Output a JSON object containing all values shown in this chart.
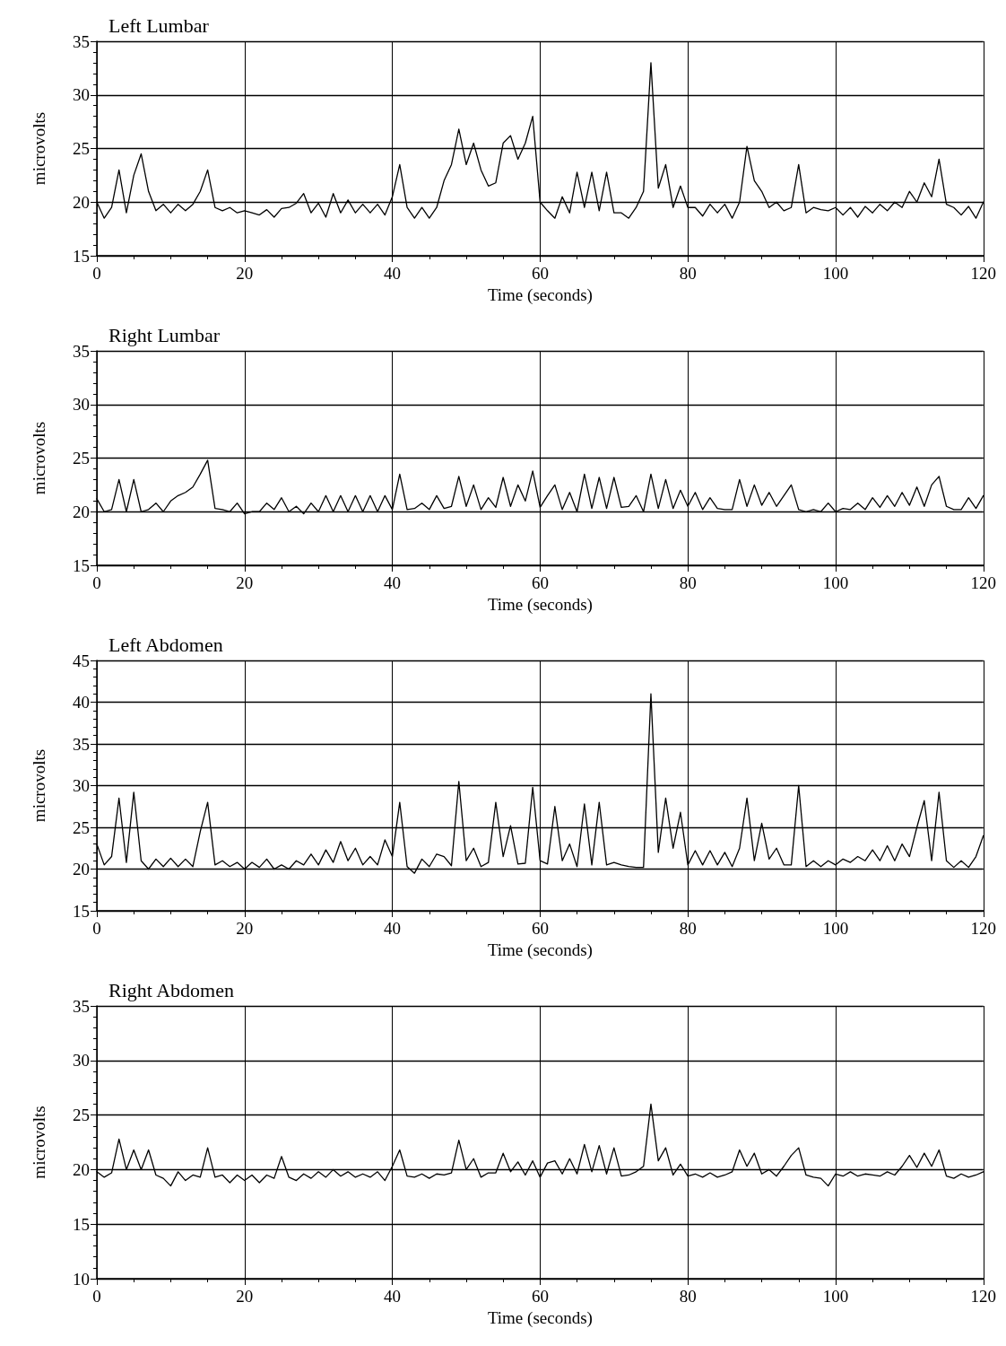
{
  "chart_data": [
    {
      "type": "line",
      "title": "Left Lumbar",
      "xlabel": "Time (seconds)",
      "ylabel": "microvolts",
      "xlim": [
        0,
        120
      ],
      "xticks": [
        0,
        20,
        40,
        60,
        80,
        100,
        120
      ],
      "ylim": [
        15,
        35
      ],
      "yticks": [
        15,
        20,
        25,
        30,
        35
      ],
      "grid": true,
      "marker": "none",
      "line_style": "solid",
      "x": [
        0,
        1,
        2,
        3,
        4,
        5,
        6,
        7,
        8,
        9,
        10,
        11,
        12,
        13,
        14,
        15,
        16,
        17,
        18,
        19,
        20,
        21,
        22,
        23,
        24,
        25,
        26,
        27,
        28,
        29,
        30,
        31,
        32,
        33,
        34,
        35,
        36,
        37,
        38,
        39,
        40,
        41,
        42,
        43,
        44,
        45,
        46,
        47,
        48,
        49,
        50,
        51,
        52,
        53,
        54,
        55,
        56,
        57,
        58,
        59,
        60,
        61,
        62,
        63,
        64,
        65,
        66,
        67,
        68,
        69,
        70,
        71,
        72,
        73,
        74,
        75,
        76,
        77,
        78,
        79,
        80,
        81,
        82,
        83,
        84,
        85,
        86,
        87,
        88,
        89,
        90,
        91,
        92,
        93,
        94,
        95,
        96,
        97,
        98,
        99,
        100,
        101,
        102,
        103,
        104,
        105,
        106,
        107,
        108,
        109,
        110,
        111,
        112,
        113,
        114,
        115,
        116,
        117,
        118,
        119,
        120
      ],
      "series": [
        {
          "color": "#000000",
          "values": [
            20,
            18.5,
            19.5,
            23,
            19,
            22.5,
            24.5,
            21,
            19.2,
            19.8,
            19,
            19.8,
            19.2,
            19.8,
            21,
            23,
            19.5,
            19.2,
            19.5,
            19,
            19.2,
            19,
            18.8,
            19.3,
            18.6,
            19.4,
            19.5,
            19.9,
            20.8,
            19,
            19.9,
            18.6,
            20.8,
            19,
            20.2,
            19,
            19.8,
            19,
            19.8,
            18.8,
            20.5,
            23.5,
            19.5,
            18.5,
            19.5,
            18.5,
            19.5,
            22,
            23.5,
            26.8,
            23.5,
            25.5,
            23,
            21.5,
            21.8,
            25.5,
            26.2,
            24,
            25.5,
            28,
            20,
            19.2,
            18.5,
            20.5,
            19,
            22.8,
            19.5,
            22.8,
            19.2,
            22.8,
            19,
            19,
            18.5,
            19.5,
            21,
            33,
            21.3,
            23.5,
            19.5,
            21.5,
            19.5,
            19.5,
            18.7,
            19.8,
            19,
            19.8,
            18.5,
            20,
            25.2,
            22,
            21,
            19.5,
            20,
            19.2,
            19.5,
            23.5,
            19,
            19.5,
            19.3,
            19.2,
            19.5,
            18.8,
            19.5,
            18.6,
            19.6,
            19,
            19.8,
            19.2,
            20,
            19.5,
            21,
            20,
            21.8,
            20.5,
            24,
            19.8,
            19.5,
            18.8,
            19.6,
            18.5,
            20
          ]
        }
      ]
    },
    {
      "type": "line",
      "title": "Right Lumbar",
      "xlabel": "Time (seconds)",
      "ylabel": "microvolts",
      "xlim": [
        0,
        120
      ],
      "xticks": [
        0,
        20,
        40,
        60,
        80,
        100,
        120
      ],
      "ylim": [
        15,
        35
      ],
      "yticks": [
        15,
        20,
        25,
        30,
        35
      ],
      "grid": true,
      "marker": "none",
      "line_style": "solid",
      "x": [
        0,
        1,
        2,
        3,
        4,
        5,
        6,
        7,
        8,
        9,
        10,
        11,
        12,
        13,
        14,
        15,
        16,
        17,
        18,
        19,
        20,
        21,
        22,
        23,
        24,
        25,
        26,
        27,
        28,
        29,
        30,
        31,
        32,
        33,
        34,
        35,
        36,
        37,
        38,
        39,
        40,
        41,
        42,
        43,
        44,
        45,
        46,
        47,
        48,
        49,
        50,
        51,
        52,
        53,
        54,
        55,
        56,
        57,
        58,
        59,
        60,
        61,
        62,
        63,
        64,
        65,
        66,
        67,
        68,
        69,
        70,
        71,
        72,
        73,
        74,
        75,
        76,
        77,
        78,
        79,
        80,
        81,
        82,
        83,
        84,
        85,
        86,
        87,
        88,
        89,
        90,
        91,
        92,
        93,
        94,
        95,
        96,
        97,
        98,
        99,
        100,
        101,
        102,
        103,
        104,
        105,
        106,
        107,
        108,
        109,
        110,
        111,
        112,
        113,
        114,
        115,
        116,
        117,
        118,
        119,
        120
      ],
      "series": [
        {
          "color": "#000000",
          "values": [
            21.2,
            20,
            20.2,
            23,
            20,
            23,
            20,
            20.2,
            20.8,
            20,
            21,
            21.5,
            21.8,
            22.3,
            23.5,
            24.8,
            20.3,
            20.2,
            20,
            20.8,
            19.8,
            20,
            20,
            20.8,
            20.2,
            21.3,
            20,
            20.5,
            19.8,
            20.8,
            20,
            21.5,
            20,
            21.5,
            20,
            21.5,
            20,
            21.5,
            20,
            21.5,
            20.2,
            23.5,
            20.2,
            20.3,
            20.8,
            20.2,
            21.5,
            20.3,
            20.5,
            23.3,
            20.5,
            22.5,
            20.2,
            21.3,
            20.4,
            23.2,
            20.5,
            22.5,
            21,
            23.8,
            20.4,
            21.5,
            22.5,
            20.2,
            21.8,
            20,
            23.5,
            20.3,
            23.2,
            20.3,
            23.2,
            20.4,
            20.5,
            21.5,
            20,
            23.5,
            20.3,
            23,
            20.3,
            22,
            20.5,
            21.8,
            20.2,
            21.3,
            20.3,
            20.2,
            20.2,
            23,
            20.5,
            22.5,
            20.6,
            21.8,
            20.5,
            21.5,
            22.5,
            20.2,
            20,
            20.2,
            20,
            20.8,
            20,
            20.3,
            20.2,
            20.8,
            20.2,
            21.3,
            20.4,
            21.5,
            20.5,
            21.8,
            20.6,
            22.3,
            20.5,
            22.5,
            23.3,
            20.5,
            20.2,
            20.2,
            21.3,
            20.3,
            21.5
          ]
        }
      ]
    },
    {
      "type": "line",
      "title": "Left Abdomen",
      "xlabel": "Time (seconds)",
      "ylabel": "microvolts",
      "xlim": [
        0,
        120
      ],
      "xticks": [
        0,
        20,
        40,
        60,
        80,
        100,
        120
      ],
      "ylim": [
        15,
        45
      ],
      "yticks": [
        15,
        20,
        25,
        30,
        35,
        40,
        45
      ],
      "grid": true,
      "marker": "none",
      "line_style": "solid",
      "x": [
        0,
        1,
        2,
        3,
        4,
        5,
        6,
        7,
        8,
        9,
        10,
        11,
        12,
        13,
        14,
        15,
        16,
        17,
        18,
        19,
        20,
        21,
        22,
        23,
        24,
        25,
        26,
        27,
        28,
        29,
        30,
        31,
        32,
        33,
        34,
        35,
        36,
        37,
        38,
        39,
        40,
        41,
        42,
        43,
        44,
        45,
        46,
        47,
        48,
        49,
        50,
        51,
        52,
        53,
        54,
        55,
        56,
        57,
        58,
        59,
        60,
        61,
        62,
        63,
        64,
        65,
        66,
        67,
        68,
        69,
        70,
        71,
        72,
        73,
        74,
        75,
        76,
        77,
        78,
        79,
        80,
        81,
        82,
        83,
        84,
        85,
        86,
        87,
        88,
        89,
        90,
        91,
        92,
        93,
        94,
        95,
        96,
        97,
        98,
        99,
        100,
        101,
        102,
        103,
        104,
        105,
        106,
        107,
        108,
        109,
        110,
        111,
        112,
        113,
        114,
        115,
        116,
        117,
        118,
        119,
        120
      ],
      "series": [
        {
          "color": "#000000",
          "values": [
            23,
            20.5,
            21.5,
            28.5,
            20.8,
            29.2,
            21,
            20,
            21.2,
            20.3,
            21.3,
            20.3,
            21.2,
            20.3,
            24.5,
            28,
            20.5,
            21,
            20.3,
            20.8,
            20,
            20.8,
            20.2,
            21.2,
            20,
            20.5,
            20,
            21,
            20.5,
            21.8,
            20.5,
            22.3,
            20.8,
            23.3,
            21,
            22.5,
            20.5,
            21.5,
            20.5,
            23.5,
            21.5,
            28,
            20.3,
            19.5,
            21.2,
            20.3,
            21.8,
            21.5,
            20.4,
            30.5,
            21,
            22.5,
            20.3,
            20.8,
            28,
            21.5,
            25.2,
            20.6,
            20.7,
            29.8,
            21,
            20.6,
            27.5,
            21,
            23,
            20.3,
            27.8,
            20.5,
            28,
            20.5,
            20.8,
            20.5,
            20.3,
            20.2,
            20.2,
            41,
            22,
            28.5,
            22.5,
            26.8,
            20.5,
            22.2,
            20.5,
            22.2,
            20.5,
            22,
            20.3,
            22.5,
            28.5,
            21,
            25.5,
            21.2,
            22.5,
            20.5,
            20.5,
            30,
            20.3,
            21,
            20.3,
            21,
            20.5,
            21.2,
            20.8,
            21.5,
            21,
            22.3,
            21,
            22.8,
            21,
            23,
            21.5,
            25,
            28.2,
            21,
            29.2,
            21,
            20.2,
            21,
            20.2,
            21.5,
            24
          ]
        }
      ]
    },
    {
      "type": "line",
      "title": "Right Abdomen",
      "xlabel": "Time (seconds)",
      "ylabel": "microvolts",
      "xlim": [
        0,
        120
      ],
      "xticks": [
        0,
        20,
        40,
        60,
        80,
        100,
        120
      ],
      "ylim": [
        10,
        35
      ],
      "yticks": [
        10,
        15,
        20,
        25,
        30,
        35
      ],
      "grid": true,
      "marker": "none",
      "line_style": "solid",
      "x": [
        0,
        1,
        2,
        3,
        4,
        5,
        6,
        7,
        8,
        9,
        10,
        11,
        12,
        13,
        14,
        15,
        16,
        17,
        18,
        19,
        20,
        21,
        22,
        23,
        24,
        25,
        26,
        27,
        28,
        29,
        30,
        31,
        32,
        33,
        34,
        35,
        36,
        37,
        38,
        39,
        40,
        41,
        42,
        43,
        44,
        45,
        46,
        47,
        48,
        49,
        50,
        51,
        52,
        53,
        54,
        55,
        56,
        57,
        58,
        59,
        60,
        61,
        62,
        63,
        64,
        65,
        66,
        67,
        68,
        69,
        70,
        71,
        72,
        73,
        74,
        75,
        76,
        77,
        78,
        79,
        80,
        81,
        82,
        83,
        84,
        85,
        86,
        87,
        88,
        89,
        90,
        91,
        92,
        93,
        94,
        95,
        96,
        97,
        98,
        99,
        100,
        101,
        102,
        103,
        104,
        105,
        106,
        107,
        108,
        109,
        110,
        111,
        112,
        113,
        114,
        115,
        116,
        117,
        118,
        119,
        120
      ],
      "series": [
        {
          "color": "#000000",
          "values": [
            19.8,
            19.3,
            19.7,
            22.8,
            20,
            21.8,
            20,
            21.8,
            19.5,
            19.2,
            18.5,
            19.8,
            19,
            19.5,
            19.3,
            22,
            19.3,
            19.5,
            18.8,
            19.5,
            19,
            19.5,
            18.8,
            19.5,
            19.2,
            21.2,
            19.3,
            19,
            19.6,
            19.2,
            19.8,
            19.3,
            20,
            19.4,
            19.8,
            19.3,
            19.6,
            19.3,
            19.8,
            19,
            20.3,
            21.8,
            19.4,
            19.3,
            19.6,
            19.2,
            19.6,
            19.5,
            19.7,
            22.7,
            20,
            21,
            19.3,
            19.7,
            19.7,
            21.5,
            19.8,
            20.7,
            19.5,
            20.8,
            19.3,
            20.6,
            20.8,
            19.6,
            21,
            19.6,
            22.3,
            19.8,
            22.2,
            19.6,
            22,
            19.4,
            19.5,
            19.8,
            20.3,
            26,
            20.8,
            22,
            19.5,
            20.5,
            19.4,
            19.6,
            19.3,
            19.7,
            19.3,
            19.5,
            19.8,
            21.8,
            20.3,
            21.5,
            19.6,
            20,
            19.4,
            20.3,
            21.3,
            22,
            19.5,
            19.3,
            19.2,
            18.5,
            19.6,
            19.4,
            19.8,
            19.4,
            19.6,
            19.5,
            19.4,
            19.8,
            19.5,
            20.3,
            21.3,
            20.2,
            21.5,
            20.3,
            21.8,
            19.4,
            19.2,
            19.6,
            19.3,
            19.5,
            19.8
          ]
        }
      ]
    }
  ]
}
